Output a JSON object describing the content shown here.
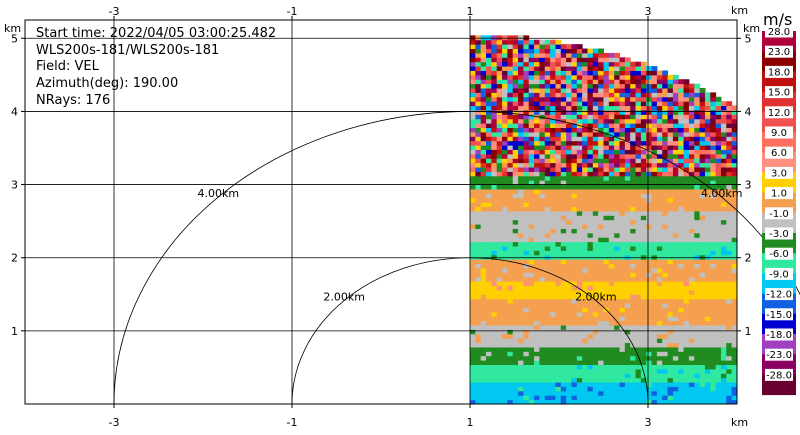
{
  "info": {
    "start_time": "Start time: 2022/04/05 03:00:25.482",
    "site": "WLS200s-181/WLS200s-181",
    "field": "Field: VEL",
    "azimuth": "Azimuth(deg): 190.00",
    "nrays": "NRays: 176"
  },
  "axis_unit": "km",
  "colorbar_unit": "m/s",
  "chart_data": {
    "type": "heatmap",
    "projection": "PPI quarter sector",
    "xlim": [
      -4,
      4
    ],
    "ylim": [
      0,
      5.25
    ],
    "x_ticks": [
      -3,
      -1,
      1,
      3
    ],
    "y_ticks": [
      1,
      2,
      3,
      4,
      5
    ],
    "range_rings": [
      {
        "radius_km": 2.0,
        "label": "2.00km"
      },
      {
        "radius_km": 4.0,
        "label": "4.00km"
      }
    ],
    "sector": {
      "center_x_km": 1.0,
      "max_range_km": 5.05,
      "az_start_deg": 0,
      "az_end_deg": 90
    },
    "colorbar": {
      "levels": [
        "28.0",
        "23.0",
        "18.0",
        "15.0",
        "12.0",
        "9.0",
        "6.0",
        "3.0",
        "1.0",
        "-1.0",
        "-3.0",
        "-6.0",
        "-9.0",
        "-12.0",
        "-15.0",
        "-18.0",
        "-23.0",
        "-28.0"
      ],
      "colors": [
        "#b0003a",
        "#8a0000",
        "#c01010",
        "#e03030",
        "#f05050",
        "#ff7060",
        "#ff9080",
        "#ffd000",
        "#f5a050",
        "#c0c0c0",
        "#208b20",
        "#30e8a0",
        "#00c8f0",
        "#1060e0",
        "#0000d0",
        "#a040c0",
        "#8b0060",
        "#6a0030"
      ]
    },
    "bands": [
      {
        "y_from": 0.0,
        "y_to": 0.25,
        "class": "-9.0"
      },
      {
        "y_from": 0.25,
        "y_to": 0.5,
        "class": "-6.0"
      },
      {
        "y_from": 0.5,
        "y_to": 0.75,
        "class": "-3.0"
      },
      {
        "y_from": 0.75,
        "y_to": 1.05,
        "class": "-1.0"
      },
      {
        "y_from": 1.05,
        "y_to": 1.4,
        "class": "1.0"
      },
      {
        "y_from": 1.4,
        "y_to": 1.65,
        "class": "3.0"
      },
      {
        "y_from": 1.65,
        "y_to": 1.95,
        "class": "1.0"
      },
      {
        "y_from": 1.95,
        "y_to": 2.2,
        "class": "-6.0"
      },
      {
        "y_from": 2.2,
        "y_to": 2.6,
        "class": "-1.0"
      },
      {
        "y_from": 2.6,
        "y_to": 2.9,
        "class": "1.0"
      },
      {
        "y_from": 2.9,
        "y_to": 3.1,
        "class": "-3.0"
      },
      {
        "y_from": 3.1,
        "y_to": 5.25,
        "class": "noise"
      }
    ]
  }
}
